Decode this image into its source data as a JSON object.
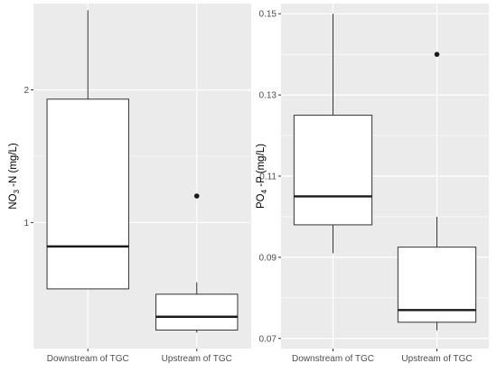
{
  "chart_data": [
    {
      "type": "boxplot",
      "ylabel_main": "NO",
      "ylabel_sub": "3",
      "ylabel_rest": " -N (mg/L)",
      "ylim": [
        0.05,
        2.65
      ],
      "yticks": [
        1,
        2
      ],
      "ytick_labels": [
        "1",
        "2"
      ],
      "minor_grid": [
        1.5
      ],
      "categories": [
        "Downstream of TGC",
        "Upstream of TGC"
      ],
      "boxes": [
        {
          "category": "Downstream of TGC",
          "whisker_low": 0.5,
          "q1": 0.5,
          "median": 0.82,
          "q3": 1.93,
          "whisker_high": 2.6,
          "outliers": []
        },
        {
          "category": "Upstream of TGC",
          "whisker_low": 0.17,
          "q1": 0.19,
          "median": 0.29,
          "q3": 0.46,
          "whisker_high": 0.55,
          "outliers": [
            1.2
          ]
        }
      ],
      "grid": true,
      "colors": {
        "panel": "#ebebeb",
        "grid": "#ffffff",
        "box_fill": "#ffffff",
        "line": "#333333",
        "median": "#1a1a1a"
      }
    },
    {
      "type": "boxplot",
      "ylabel_main": "PO",
      "ylabel_sub": "4",
      "ylabel_rest": " -P (mg/L)",
      "ylim": [
        0.0675,
        0.1525
      ],
      "yticks": [
        0.07,
        0.09,
        0.11,
        0.13,
        0.15
      ],
      "ytick_labels": [
        "0.07",
        "0.09",
        "0.11",
        "0.13",
        "0.15"
      ],
      "minor_grid": [
        0.08,
        0.1,
        0.12,
        0.14
      ],
      "categories": [
        "Downstream of TGC",
        "Upstream of TGC"
      ],
      "boxes": [
        {
          "category": "Downstream of TGC",
          "whisker_low": 0.091,
          "q1": 0.098,
          "median": 0.105,
          "q3": 0.125,
          "whisker_high": 0.15,
          "outliers": []
        },
        {
          "category": "Upstream of TGC",
          "whisker_low": 0.072,
          "q1": 0.074,
          "median": 0.077,
          "q3": 0.0925,
          "whisker_high": 0.1,
          "outliers": [
            0.14
          ]
        }
      ],
      "grid": true,
      "colors": {
        "panel": "#ebebeb",
        "grid": "#ffffff",
        "box_fill": "#ffffff",
        "line": "#333333",
        "median": "#1a1a1a"
      }
    }
  ]
}
